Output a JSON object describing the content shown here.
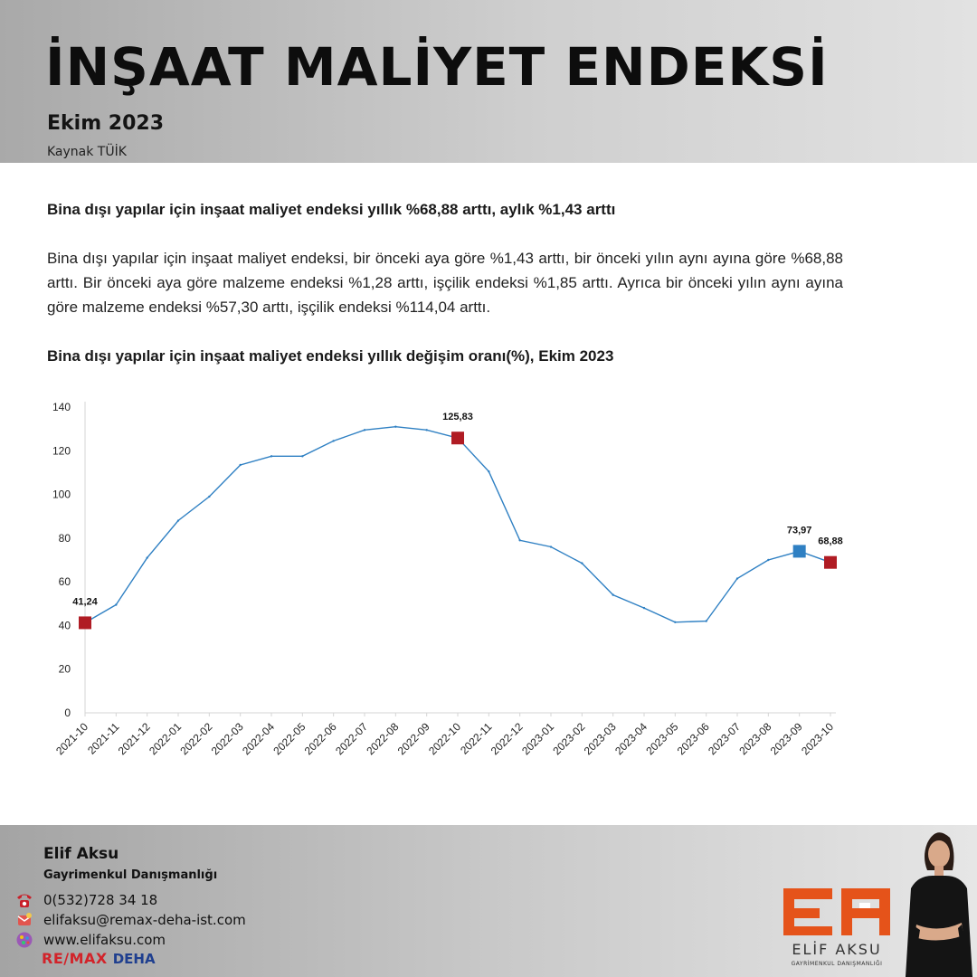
{
  "header": {
    "title": "İNŞAAT MALİYET ENDEKSİ",
    "subtitle": "Ekim 2023",
    "source": "Kaynak TÜİK"
  },
  "article": {
    "headline": "Bina dışı yapılar için inşaat maliyet endeksi yıllık %68,88 arttı, aylık %1,43 arttı",
    "paragraph": "Bina dışı yapılar için inşaat maliyet endeksi, bir önceki aya göre %1,43 arttı, bir önceki yılın aynı ayına göre %68,88 arttı. Bir önceki aya göre malzeme endeksi %1,28 arttı, işçilik endeksi %1,85 arttı. Ayrıca bir önceki yılın aynı ayına göre malzeme endeksi %57,30 arttı, işçilik endeksi %114,04 arttı.",
    "chart_heading": "Bina dışı yapılar için inşaat maliyet endeksi yıllık değişim oranı(%), Ekim 2023"
  },
  "chart_data": {
    "type": "line",
    "title": "Bina dışı yapılar için inşaat maliyet endeksi yıllık değişim oranı(%), Ekim 2023",
    "xlabel": "",
    "ylabel": "",
    "ylim": [
      0,
      140
    ],
    "yticks": [
      0,
      20,
      40,
      60,
      80,
      100,
      120,
      140
    ],
    "grid": false,
    "line_color": "#2f80c3",
    "categories": [
      "2021-10",
      "2021-11",
      "2021-12",
      "2022-01",
      "2022-02",
      "2022-03",
      "2022-04",
      "2022-05",
      "2022-06",
      "2022-07",
      "2022-08",
      "2022-09",
      "2022-10",
      "2022-11",
      "2022-12",
      "2023-01",
      "2023-02",
      "2023-03",
      "2023-04",
      "2023-05",
      "2023-06",
      "2023-07",
      "2023-08",
      "2023-09",
      "2023-10"
    ],
    "series": [
      {
        "values": [
          41.24,
          49.5,
          71.0,
          88.0,
          99.0,
          113.5,
          117.5,
          117.5,
          124.5,
          129.5,
          131.0,
          129.5,
          125.83,
          110.5,
          79.0,
          76.0,
          68.5,
          54.0,
          48.0,
          41.5,
          42.0,
          61.5,
          70.0,
          73.97,
          68.88
        ]
      }
    ],
    "highlights": [
      {
        "index": 0,
        "label": "41,24",
        "color": "#b01c24"
      },
      {
        "index": 12,
        "label": "125,83",
        "color": "#b01c24"
      },
      {
        "index": 23,
        "label": "73,97",
        "color": "#2f80c3"
      },
      {
        "index": 24,
        "label": "68,88",
        "color": "#b01c24"
      }
    ]
  },
  "footer": {
    "name": "Elif Aksu",
    "role": "Gayrimenkul Danışmanlığı",
    "phone": "0(532)728 34 18",
    "email": "elifaksu@remax-deha-ist.com",
    "website": "www.elifaksu.com",
    "brand_mark": "RE/MAX",
    "brand_name": "DEHA",
    "logo_text": "ELİF AKSU",
    "logo_tagline": "GAYRİMENKUL DANIŞMANLIĞI",
    "icons": [
      "phone-icon",
      "email-icon",
      "globe-icon"
    ],
    "accent_color": "#e5531a"
  }
}
